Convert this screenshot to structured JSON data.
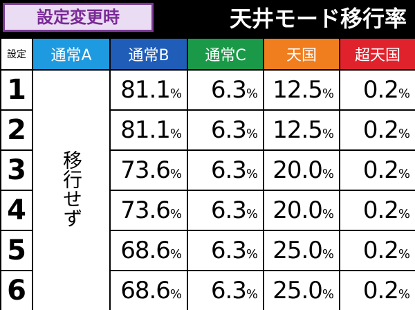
{
  "header": {
    "badge": "設定変更時",
    "title": "天井モード移行率"
  },
  "table": {
    "columns": [
      "設定",
      "通常A",
      "通常B",
      "通常C",
      "天国",
      "超天国"
    ],
    "merged_cell": "移行せず",
    "rows": [
      [
        "1",
        "81.1%",
        "6.3%",
        "12.5%",
        "0.2%"
      ],
      [
        "2",
        "81.1%",
        "6.3%",
        "12.5%",
        "0.2%"
      ],
      [
        "3",
        "73.6%",
        "6.3%",
        "20.0%",
        "0.2%"
      ],
      [
        "4",
        "73.6%",
        "6.3%",
        "20.0%",
        "0.2%"
      ],
      [
        "5",
        "68.6%",
        "6.3%",
        "25.0%",
        "0.2%"
      ],
      [
        "6",
        "68.6%",
        "6.3%",
        "25.0%",
        "0.2%"
      ]
    ]
  }
}
